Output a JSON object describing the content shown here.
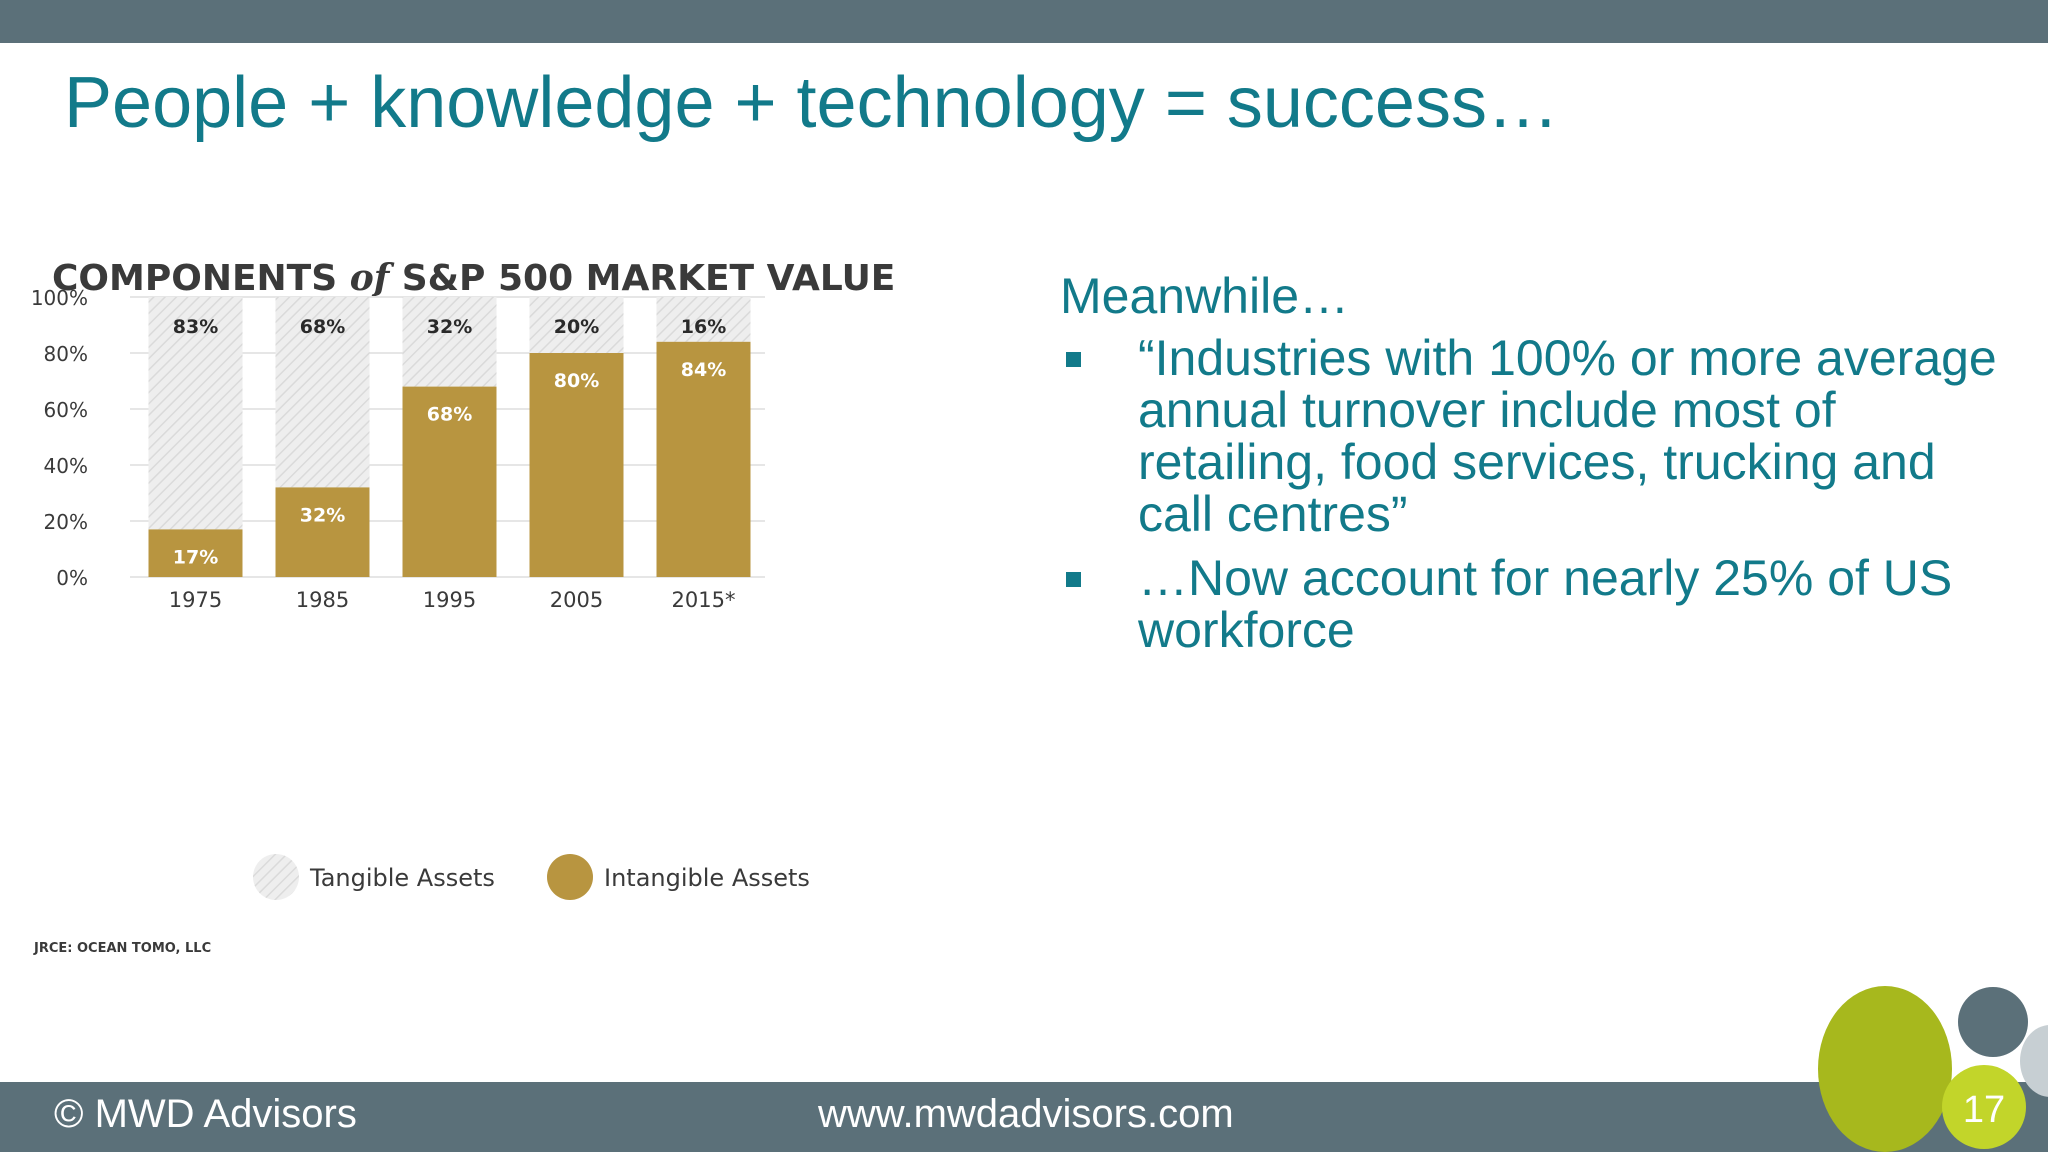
{
  "slide": {
    "title": "People + knowledge + technology = success…",
    "page_number": "17"
  },
  "chart_data": {
    "type": "bar",
    "title_parts": [
      "COMPONENTS ",
      "of",
      " S&P 500 MARKET VALUE"
    ],
    "categories": [
      "1975",
      "1985",
      "1995",
      "2005",
      "2015*"
    ],
    "series": [
      {
        "name": "Intangible Assets",
        "values": [
          17,
          32,
          68,
          80,
          84
        ],
        "labels": [
          "17%",
          "32%",
          "68%",
          "80%",
          "84%"
        ]
      },
      {
        "name": "Tangible Assets",
        "values": [
          83,
          68,
          32,
          20,
          16
        ],
        "labels": [
          "83%",
          "68%",
          "32%",
          "20%",
          "16%"
        ]
      }
    ],
    "yticks": [
      "0%",
      "20%",
      "40%",
      "60%",
      "80%",
      "100%"
    ],
    "ylim": [
      0,
      100
    ],
    "stacked": true,
    "grid": true,
    "legend_position": "bottom",
    "source": "JRCE: OCEAN TOMO, LLC",
    "colors": {
      "intangible": "#b89540",
      "tangible": "#ececec",
      "tangible_hatch": "#dcdcdc",
      "grid": "#e6e6e6"
    }
  },
  "bullets": {
    "intro": "Meanwhile…",
    "items": [
      "“Industries with 100% or more average annual turnover include most of retailing, food services, trucking and call centres”",
      "…Now account for nearly 25% of US workforce"
    ]
  },
  "footer": {
    "copyright": "© MWD Advisors",
    "url": "www.mwdadvisors.com"
  },
  "colors": {
    "bar": "#5b7079",
    "title": "#127a8a",
    "accent_green": "#a7b81d"
  }
}
